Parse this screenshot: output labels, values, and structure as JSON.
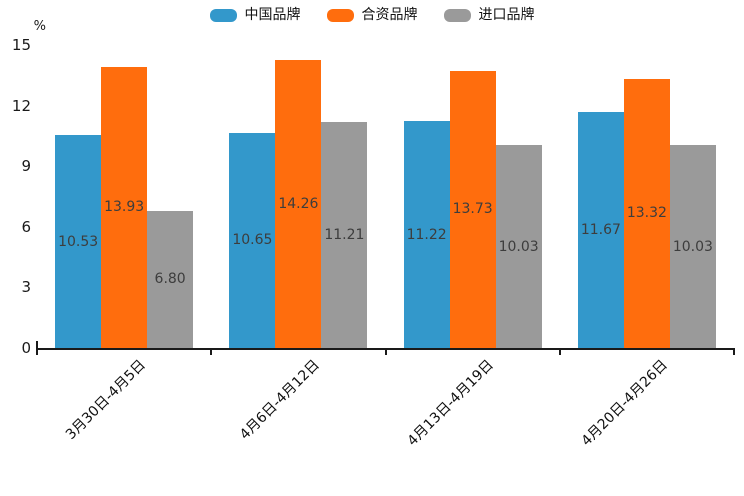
{
  "chart_data": {
    "type": "bar",
    "title": "",
    "xlabel": "",
    "ylabel": "%",
    "categories": [
      "3月30日-4月5日",
      "4月6日-4月12日",
      "4月13日-4月19日",
      "4月20日-4月26日"
    ],
    "series": [
      {
        "name": "中国品牌",
        "color": "#3398CB",
        "values": [
          10.53,
          10.65,
          11.22,
          11.67
        ]
      },
      {
        "name": "合资品牌",
        "color": "#FF6D0D",
        "values": [
          13.93,
          14.26,
          13.73,
          13.32
        ]
      },
      {
        "name": "进口品牌",
        "color": "#9A9A9A",
        "values": [
          6.8,
          11.21,
          10.03,
          10.03
        ]
      }
    ],
    "value_labels": [
      [
        "10.53",
        "13.93",
        "6.80"
      ],
      [
        "10.65",
        "14.26",
        "11.21"
      ],
      [
        "11.22",
        "13.73",
        "10.03"
      ],
      [
        "11.67",
        "13.32",
        "10.03"
      ]
    ],
    "ylim": [
      0,
      15
    ],
    "yticks": [
      0,
      3,
      6,
      9,
      12,
      15
    ],
    "grid": false,
    "legend_position": "top",
    "bar_label_color": "#3D3D3D",
    "axis_color": "#1A1A1A"
  }
}
